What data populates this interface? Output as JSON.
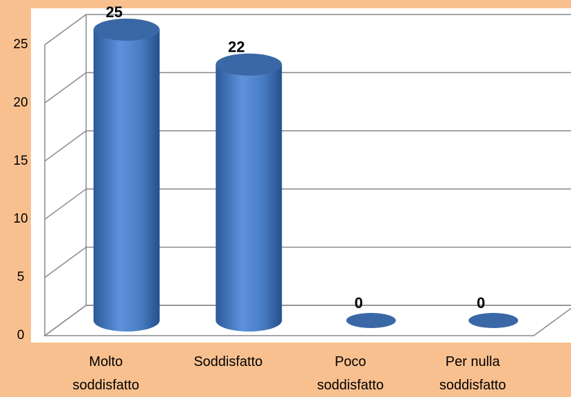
{
  "chart_data": {
    "type": "bar",
    "categories": [
      "Molto soddisfatto",
      "Soddisfatto",
      "Poco soddisfatto",
      "Per nulla soddisfatto"
    ],
    "values": [
      25,
      22,
      0,
      0
    ],
    "color": "#4a7ec4",
    "ylim": [
      0,
      25
    ],
    "yticks": [
      0,
      5,
      10,
      15,
      20,
      25
    ],
    "grid": true
  }
}
